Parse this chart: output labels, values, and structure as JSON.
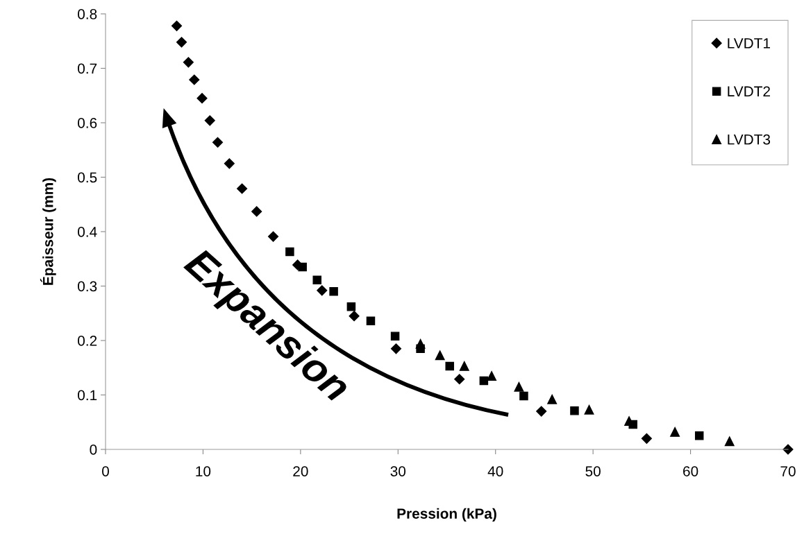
{
  "chart_data": {
    "type": "scatter",
    "xlabel": "Pression (kPa)",
    "ylabel": "Épaisseur (mm)",
    "xlim": [
      0,
      70
    ],
    "xticks": [
      0,
      10,
      20,
      30,
      40,
      50,
      60,
      70
    ],
    "ylim": [
      0,
      0.8
    ],
    "yticks": [
      0,
      0.1,
      0.2,
      0.3,
      0.4,
      0.5,
      0.6,
      0.7,
      0.8
    ],
    "grid": false,
    "legend": "top right",
    "annotations": [
      "Expansion"
    ],
    "series": [
      {
        "name": "LVDT1",
        "color": "#000000",
        "marker": "diamond",
        "x": [
          7.3,
          7.8,
          8.5,
          9.1,
          9.9,
          10.7,
          11.5,
          12.7,
          14.0,
          15.5,
          17.2,
          19.7,
          22.2,
          25.5,
          29.8,
          36.3,
          44.7,
          55.5,
          70.0
        ],
        "values": [
          0.778,
          0.748,
          0.711,
          0.679,
          0.645,
          0.604,
          0.564,
          0.525,
          0.479,
          0.437,
          0.391,
          0.339,
          0.292,
          0.245,
          0.185,
          0.129,
          0.07,
          0.02,
          0.0
        ]
      },
      {
        "name": "LVDT2",
        "color": "#000000",
        "marker": "square",
        "x": [
          18.9,
          20.2,
          21.7,
          23.4,
          25.2,
          27.2,
          29.7,
          32.3,
          35.3,
          38.8,
          42.9,
          48.1,
          54.1,
          60.9
        ],
        "values": [
          0.363,
          0.335,
          0.311,
          0.29,
          0.262,
          0.236,
          0.208,
          0.185,
          0.153,
          0.126,
          0.098,
          0.071,
          0.046,
          0.025
        ]
      },
      {
        "name": "LVDT3",
        "color": "#000000",
        "marker": "triangle",
        "x": [
          32.3,
          34.3,
          36.8,
          39.6,
          42.4,
          45.8,
          49.6,
          53.7,
          58.4,
          64.0
        ],
        "values": [
          0.194,
          0.173,
          0.153,
          0.135,
          0.115,
          0.092,
          0.073,
          0.052,
          0.032,
          0.015
        ]
      }
    ]
  }
}
